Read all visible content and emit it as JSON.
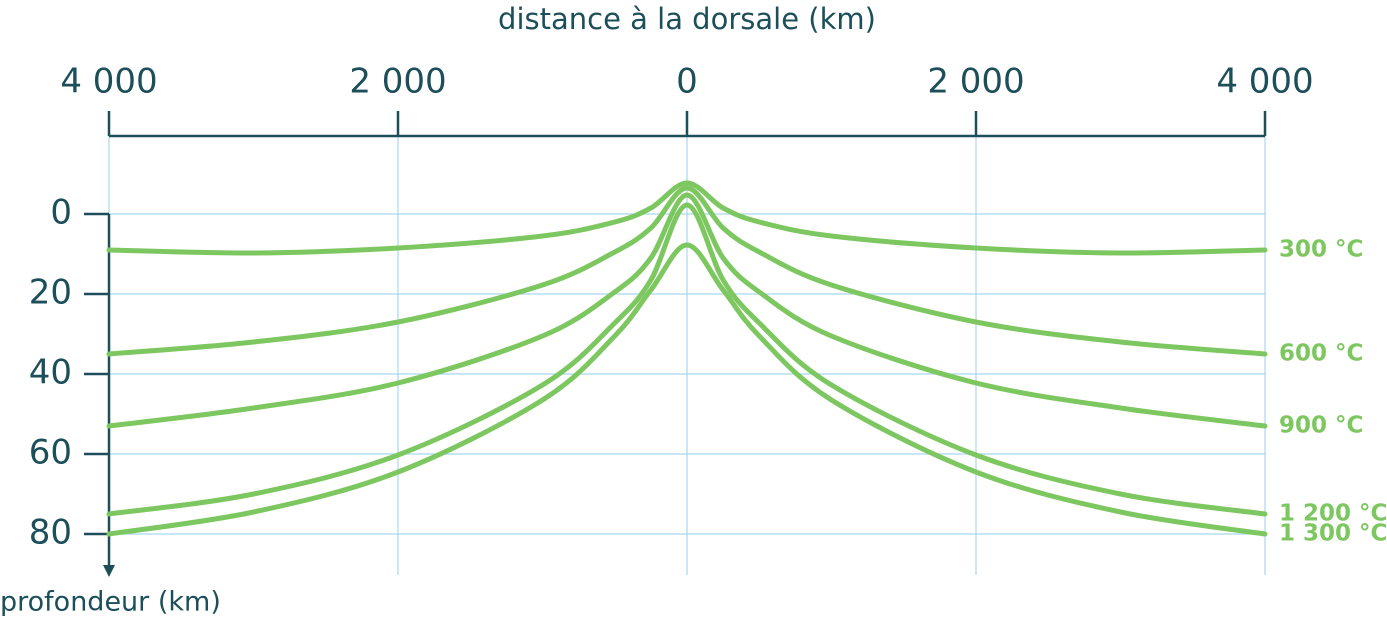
{
  "chart_data": {
    "type": "line",
    "title": "distance à la dorsale (km)",
    "y_label": "profondeur (km)",
    "xlim": [
      -4000,
      4000
    ],
    "xticks": [
      {
        "value": -4000,
        "label": "4 000"
      },
      {
        "value": -2000,
        "label": "2 000"
      },
      0,
      {
        "value": 2000,
        "label": "2 000"
      },
      {
        "value": 4000,
        "label": "4 000"
      }
    ],
    "ylim": [
      -19.5,
      90.25
    ],
    "y_reversed": true,
    "yticks": [
      0,
      20,
      40,
      60,
      80
    ],
    "grid": true,
    "series": [
      {
        "name": "300 °C",
        "color": "#7dc761",
        "x": [
          -4000,
          -3000,
          -2000,
          -1000,
          -500,
          -250,
          0,
          250,
          500,
          1000,
          2000,
          3000,
          4000
        ],
        "values": [
          9,
          9.75,
          8.5,
          5.5,
          2,
          -1.5,
          -7.75,
          -1.5,
          2,
          5.5,
          8.5,
          9.75,
          9
        ]
      },
      {
        "name": "600 °C",
        "color": "#7dc761",
        "x": [
          -4000,
          -3000,
          -2000,
          -1000,
          -500,
          -250,
          0,
          250,
          500,
          1000,
          2000,
          3000,
          4000
        ],
        "values": [
          35,
          32,
          27,
          17.75,
          9.5,
          3.5,
          -6.5,
          3.5,
          9.5,
          17.75,
          27,
          32,
          35
        ]
      },
      {
        "name": "900 °C",
        "color": "#7dc761",
        "x": [
          -4000,
          -3000,
          -2000,
          -1000,
          -500,
          -250,
          0,
          250,
          500,
          1000,
          2000,
          3000,
          4000
        ],
        "values": [
          53,
          48.5,
          42.25,
          30.5,
          19.5,
          11,
          -4.75,
          11,
          19.5,
          30.5,
          42.25,
          48.5,
          53
        ]
      },
      {
        "name": "1 200 °C",
        "color": "#7dc761",
        "x": [
          -4000,
          -3000,
          -2000,
          -1000,
          -500,
          -250,
          0,
          250,
          500,
          1000,
          2000,
          3000,
          4000
        ],
        "values": [
          75,
          70,
          60.25,
          42.75,
          27.25,
          16.5,
          -2.25,
          16.5,
          27.25,
          42.75,
          60.25,
          70,
          75
        ]
      },
      {
        "name": "1 300 °C",
        "color": "#7dc761",
        "x": [
          -4000,
          -3000,
          -2000,
          -1000,
          -500,
          -250,
          0,
          250,
          500,
          1000,
          2000,
          3000,
          4000
        ],
        "values": [
          80,
          74.5,
          64.5,
          46.5,
          30.5,
          19,
          7.75,
          19,
          30.5,
          46.5,
          64.5,
          74.5,
          80
        ]
      }
    ]
  }
}
